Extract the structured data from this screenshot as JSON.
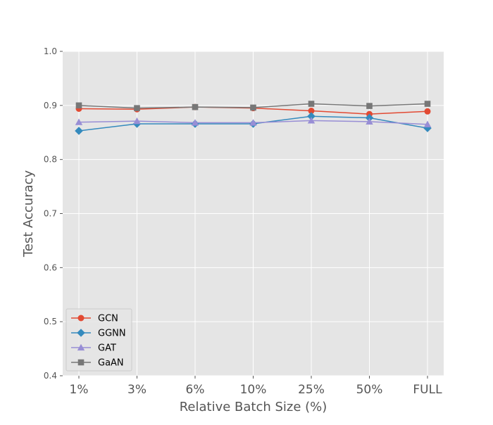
{
  "chart_data": {
    "type": "line",
    "title": "",
    "xlabel": "Relative Batch Size (%)",
    "ylabel": "Test Accuracy",
    "categories": [
      "1%",
      "3%",
      "6%",
      "10%",
      "25%",
      "50%",
      "FULL"
    ],
    "ylim": [
      0.4,
      1.0
    ],
    "yticks": [
      "0.4",
      "0.5",
      "0.6",
      "0.7",
      "0.8",
      "0.9",
      "1.0"
    ],
    "grid": true,
    "legend_position": "lower-left",
    "background_color": "#e5e5e5",
    "grid_color": "#ffffff",
    "series": [
      {
        "name": "GCN",
        "color": "#e24a33",
        "marker": "circle",
        "values": [
          0.894,
          0.893,
          0.897,
          0.895,
          0.89,
          0.884,
          0.889
        ]
      },
      {
        "name": "GGNN",
        "color": "#348abd",
        "marker": "diamond",
        "values": [
          0.853,
          0.866,
          0.866,
          0.866,
          0.88,
          0.877,
          0.858
        ]
      },
      {
        "name": "GAT",
        "color": "#988ed5",
        "marker": "triangle",
        "values": [
          0.869,
          0.871,
          0.868,
          0.868,
          0.872,
          0.87,
          0.865
        ]
      },
      {
        "name": "GaAN",
        "color": "#777777",
        "marker": "square",
        "values": [
          0.9,
          0.895,
          0.897,
          0.896,
          0.903,
          0.899,
          0.903
        ]
      }
    ]
  }
}
